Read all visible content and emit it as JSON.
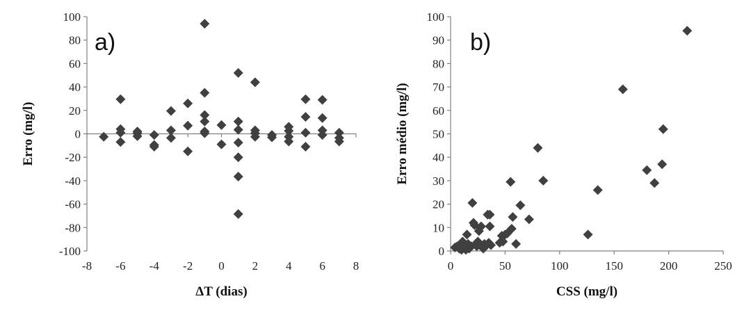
{
  "colors": {
    "marker": "#404040",
    "axis": "#7f7f7f",
    "text": "#111111"
  },
  "chart_data": [
    {
      "type": "scatter",
      "panel_label": "a)",
      "xlabel": "ΔT (dias)",
      "ylabel": "Erro (mg/l)",
      "xlim": [
        -8,
        8
      ],
      "ylim": [
        -100,
        100
      ],
      "xticks": [
        -8,
        -6,
        -4,
        -2,
        0,
        2,
        4,
        6,
        8
      ],
      "yticks": [
        -100,
        -80,
        -60,
        -40,
        -20,
        0,
        20,
        40,
        60,
        80,
        100
      ],
      "marker": "diamond",
      "grid": false,
      "points": [
        [
          -7,
          -2.5
        ],
        [
          -6,
          29.5
        ],
        [
          -6,
          4
        ],
        [
          -6,
          1
        ],
        [
          -6,
          -7
        ],
        [
          -5,
          2
        ],
        [
          -5,
          0.5
        ],
        [
          -5,
          -2
        ],
        [
          -4,
          -1
        ],
        [
          -4,
          -9.5
        ],
        [
          -4,
          -11
        ],
        [
          -3,
          19.5
        ],
        [
          -3,
          3
        ],
        [
          -3,
          -3.5
        ],
        [
          -2,
          26
        ],
        [
          -2,
          7
        ],
        [
          -2,
          -15
        ],
        [
          -1,
          94
        ],
        [
          -1,
          35
        ],
        [
          -1,
          16
        ],
        [
          -1,
          10.5
        ],
        [
          -1,
          2
        ],
        [
          -1,
          0.5
        ],
        [
          0,
          7.5
        ],
        [
          0,
          -9
        ],
        [
          1,
          52
        ],
        [
          1,
          10.5
        ],
        [
          1,
          3.5
        ],
        [
          1,
          -7.5
        ],
        [
          1,
          -20
        ],
        [
          1,
          -36.5
        ],
        [
          1,
          -68.5
        ],
        [
          2,
          44
        ],
        [
          2,
          3
        ],
        [
          2,
          0.5
        ],
        [
          2,
          -2.5
        ],
        [
          3,
          -1
        ],
        [
          3,
          -3
        ],
        [
          4,
          6
        ],
        [
          4,
          2.5
        ],
        [
          4,
          -2.5
        ],
        [
          4,
          -6.5
        ],
        [
          5,
          29.5
        ],
        [
          5,
          14.5
        ],
        [
          5,
          1
        ],
        [
          5,
          -11
        ],
        [
          6,
          29
        ],
        [
          6,
          13.5
        ],
        [
          6,
          3
        ],
        [
          6,
          -1
        ],
        [
          7,
          1
        ],
        [
          7,
          -3.5
        ],
        [
          7,
          -6.5
        ]
      ]
    },
    {
      "type": "scatter",
      "panel_label": "b)",
      "xlabel": "CSS (mg/l)",
      "ylabel": "Erro médio (mg/l)",
      "xlim": [
        0,
        250
      ],
      "ylim": [
        0,
        100
      ],
      "xticks": [
        0,
        50,
        100,
        150,
        200,
        250
      ],
      "yticks": [
        0,
        10,
        20,
        30,
        40,
        50,
        60,
        70,
        80,
        90,
        100
      ],
      "marker": "diamond",
      "grid": false,
      "points": [
        [
          4,
          1.5
        ],
        [
          6,
          2
        ],
        [
          8,
          1
        ],
        [
          9,
          3
        ],
        [
          10,
          0.5
        ],
        [
          11,
          4
        ],
        [
          12,
          1.5
        ],
        [
          13,
          2.5
        ],
        [
          14,
          0.5
        ],
        [
          15,
          7
        ],
        [
          16,
          3
        ],
        [
          17,
          1
        ],
        [
          18,
          2
        ],
        [
          19,
          2
        ],
        [
          20,
          20.5
        ],
        [
          21,
          12
        ],
        [
          22,
          11
        ],
        [
          23,
          3
        ],
        [
          24,
          2
        ],
        [
          25,
          4
        ],
        [
          26,
          8.5
        ],
        [
          27,
          10
        ],
        [
          28,
          10.5
        ],
        [
          29,
          2
        ],
        [
          30,
          1
        ],
        [
          31,
          3
        ],
        [
          33,
          2.5
        ],
        [
          34,
          15.5
        ],
        [
          35,
          3.5
        ],
        [
          36,
          15.5
        ],
        [
          36,
          10.5
        ],
        [
          37,
          2.5
        ],
        [
          45,
          3.5
        ],
        [
          47,
          6.5
        ],
        [
          48,
          4
        ],
        [
          50,
          7
        ],
        [
          52,
          7.5
        ],
        [
          55,
          29.5
        ],
        [
          56,
          9.5
        ],
        [
          57,
          14.5
        ],
        [
          60,
          3
        ],
        [
          64,
          19.5
        ],
        [
          72,
          13.5
        ],
        [
          80,
          44
        ],
        [
          85,
          30
        ],
        [
          126,
          7
        ],
        [
          135,
          26
        ],
        [
          158,
          69
        ],
        [
          180,
          34.5
        ],
        [
          187,
          29
        ],
        [
          194,
          37
        ],
        [
          195,
          52
        ],
        [
          217,
          94
        ]
      ]
    }
  ]
}
